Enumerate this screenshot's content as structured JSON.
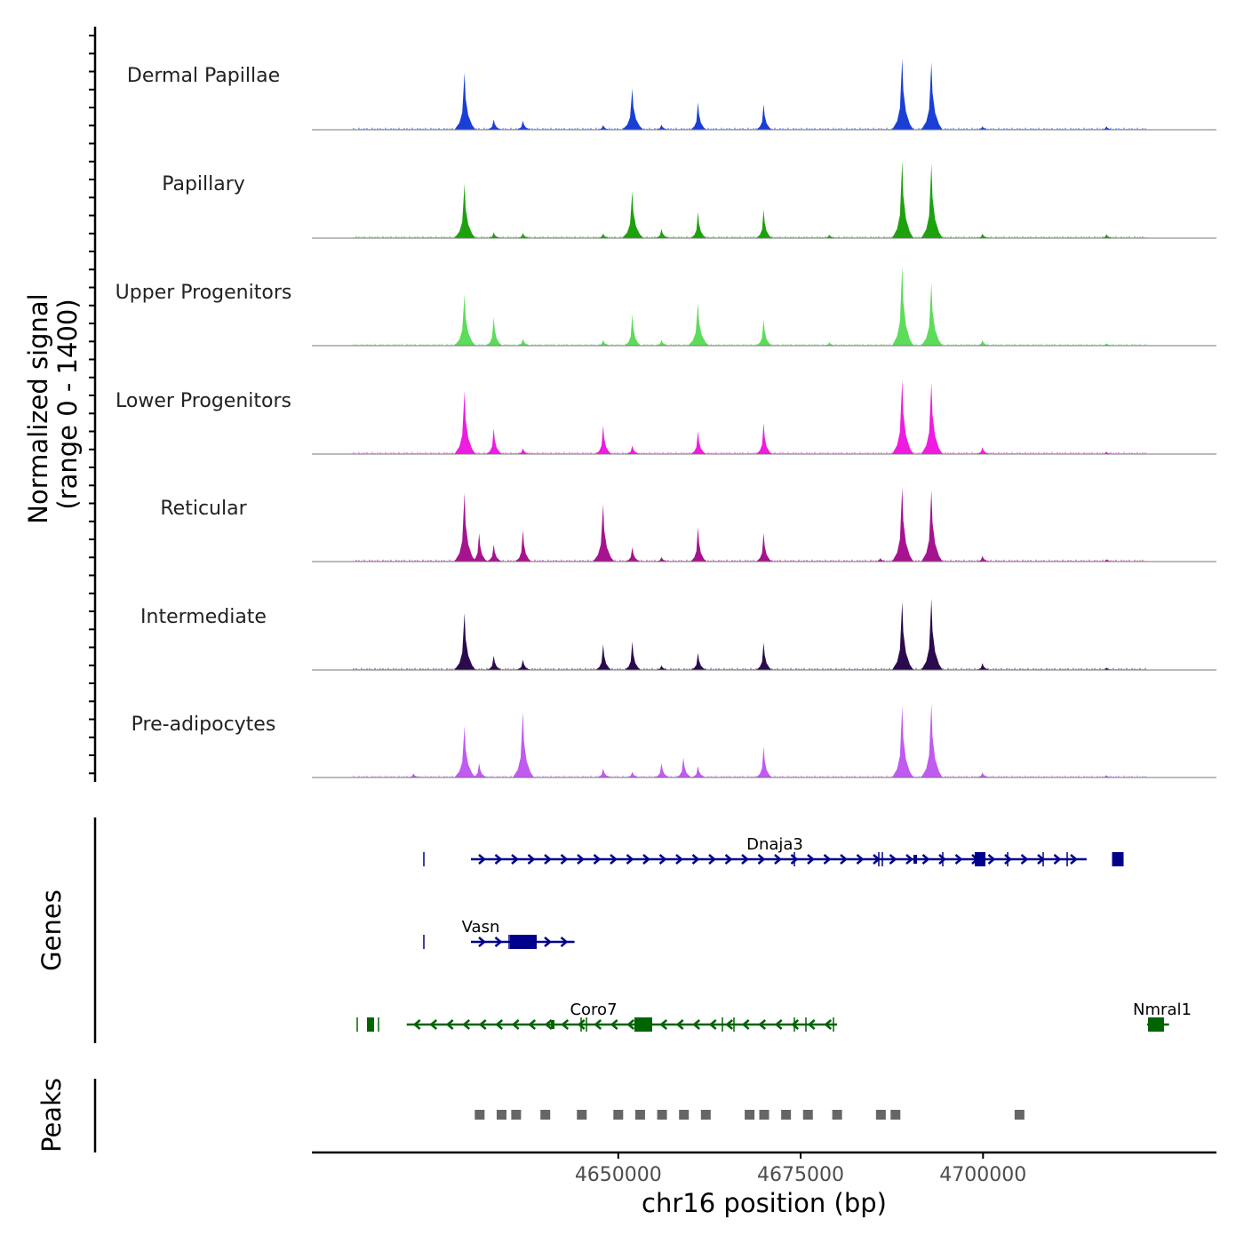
{
  "chart_data": {
    "type": "area",
    "title": "",
    "signal_ylabel_line1": "Normalized signal",
    "signal_ylabel_line2": "(range 0 - 1400)",
    "ylim": [
      0,
      1400
    ],
    "xlabel": "chr16 position (bp)",
    "xlim": [
      4608000,
      4732000
    ],
    "x_ticks": [
      4650000,
      4675000,
      4700000
    ],
    "x_tick_labels": [
      "4650000",
      "4675000",
      "4700000"
    ],
    "tracks": [
      {
        "name": "Dermal Papillae",
        "color": "#1a3fd6",
        "peaks": [
          [
            4629,
            1000
          ],
          [
            4633,
            180
          ],
          [
            4637,
            160
          ],
          [
            4648,
            80
          ],
          [
            4652,
            720
          ],
          [
            4656,
            90
          ],
          [
            4661,
            480
          ],
          [
            4670,
            450
          ],
          [
            4689,
            1250
          ],
          [
            4693,
            1180
          ],
          [
            4700,
            60
          ],
          [
            4717,
            60
          ]
        ]
      },
      {
        "name": "Papillary",
        "color": "#1ea10e",
        "peaks": [
          [
            4629,
            950
          ],
          [
            4633,
            100
          ],
          [
            4637,
            90
          ],
          [
            4648,
            80
          ],
          [
            4652,
            820
          ],
          [
            4656,
            160
          ],
          [
            4661,
            460
          ],
          [
            4670,
            500
          ],
          [
            4679,
            60
          ],
          [
            4689,
            1350
          ],
          [
            4693,
            1300
          ],
          [
            4700,
            80
          ],
          [
            4717,
            70
          ]
        ]
      },
      {
        "name": "Upper Progenitors",
        "color": "#5cdc5a",
        "peaks": [
          [
            4629,
            900
          ],
          [
            4633,
            500
          ],
          [
            4637,
            120
          ],
          [
            4648,
            100
          ],
          [
            4652,
            550
          ],
          [
            4656,
            100
          ],
          [
            4661,
            750
          ],
          [
            4670,
            460
          ],
          [
            4679,
            60
          ],
          [
            4689,
            1400
          ],
          [
            4693,
            1100
          ],
          [
            4700,
            100
          ],
          [
            4717,
            40
          ]
        ]
      },
      {
        "name": "Lower Progenitors",
        "color": "#ee1be0",
        "peaks": [
          [
            4629,
            1100
          ],
          [
            4633,
            450
          ],
          [
            4637,
            100
          ],
          [
            4648,
            500
          ],
          [
            4652,
            150
          ],
          [
            4661,
            400
          ],
          [
            4670,
            540
          ],
          [
            4689,
            1300
          ],
          [
            4693,
            1250
          ],
          [
            4700,
            120
          ],
          [
            4717,
            40
          ]
        ]
      },
      {
        "name": "Reticular",
        "color": "#a5138f",
        "peaks": [
          [
            4629,
            1200
          ],
          [
            4631,
            500
          ],
          [
            4633,
            300
          ],
          [
            4637,
            550
          ],
          [
            4648,
            1000
          ],
          [
            4652,
            250
          ],
          [
            4656,
            80
          ],
          [
            4661,
            600
          ],
          [
            4670,
            500
          ],
          [
            4686,
            60
          ],
          [
            4689,
            1300
          ],
          [
            4693,
            1250
          ],
          [
            4700,
            100
          ],
          [
            4717,
            40
          ]
        ]
      },
      {
        "name": "Intermediate",
        "color": "#2b0a4e",
        "peaks": [
          [
            4629,
            1000
          ],
          [
            4633,
            250
          ],
          [
            4637,
            180
          ],
          [
            4648,
            450
          ],
          [
            4652,
            500
          ],
          [
            4656,
            80
          ],
          [
            4661,
            300
          ],
          [
            4670,
            480
          ],
          [
            4689,
            1200
          ],
          [
            4693,
            1250
          ],
          [
            4700,
            120
          ],
          [
            4717,
            40
          ]
        ]
      },
      {
        "name": "Pre-adipocytes",
        "color": "#c05af0",
        "peaks": [
          [
            4622,
            70
          ],
          [
            4629,
            900
          ],
          [
            4631,
            250
          ],
          [
            4637,
            1150
          ],
          [
            4648,
            160
          ],
          [
            4652,
            100
          ],
          [
            4656,
            250
          ],
          [
            4659,
            350
          ],
          [
            4661,
            200
          ],
          [
            4670,
            540
          ],
          [
            4689,
            1250
          ],
          [
            4693,
            1300
          ],
          [
            4700,
            90
          ],
          [
            4717,
            40
          ]
        ]
      }
    ],
    "genes_label": "Genes",
    "genes": [
      {
        "name": "Dnaja3",
        "strand": "+",
        "color": "#00008b",
        "start": 4629800,
        "end": 4714200
      },
      {
        "name": "Vasn",
        "strand": "+",
        "color": "#00008b",
        "start": 4629800,
        "end": 4644000
      },
      {
        "name": "Coro7",
        "strand": "-",
        "color": "#006400",
        "start": 4621000,
        "end": 4680000
      },
      {
        "name": "Nmral1",
        "strand": "-",
        "color": "#006400",
        "start": 4722500,
        "end": 4725500
      }
    ],
    "peaks_label": "Peaks",
    "peak_regions": [
      4631,
      4634,
      4636,
      4640,
      4645,
      4650,
      4653,
      4656,
      4659,
      4662,
      4668,
      4670,
      4673,
      4676,
      4680,
      4686,
      4688,
      4705
    ]
  }
}
